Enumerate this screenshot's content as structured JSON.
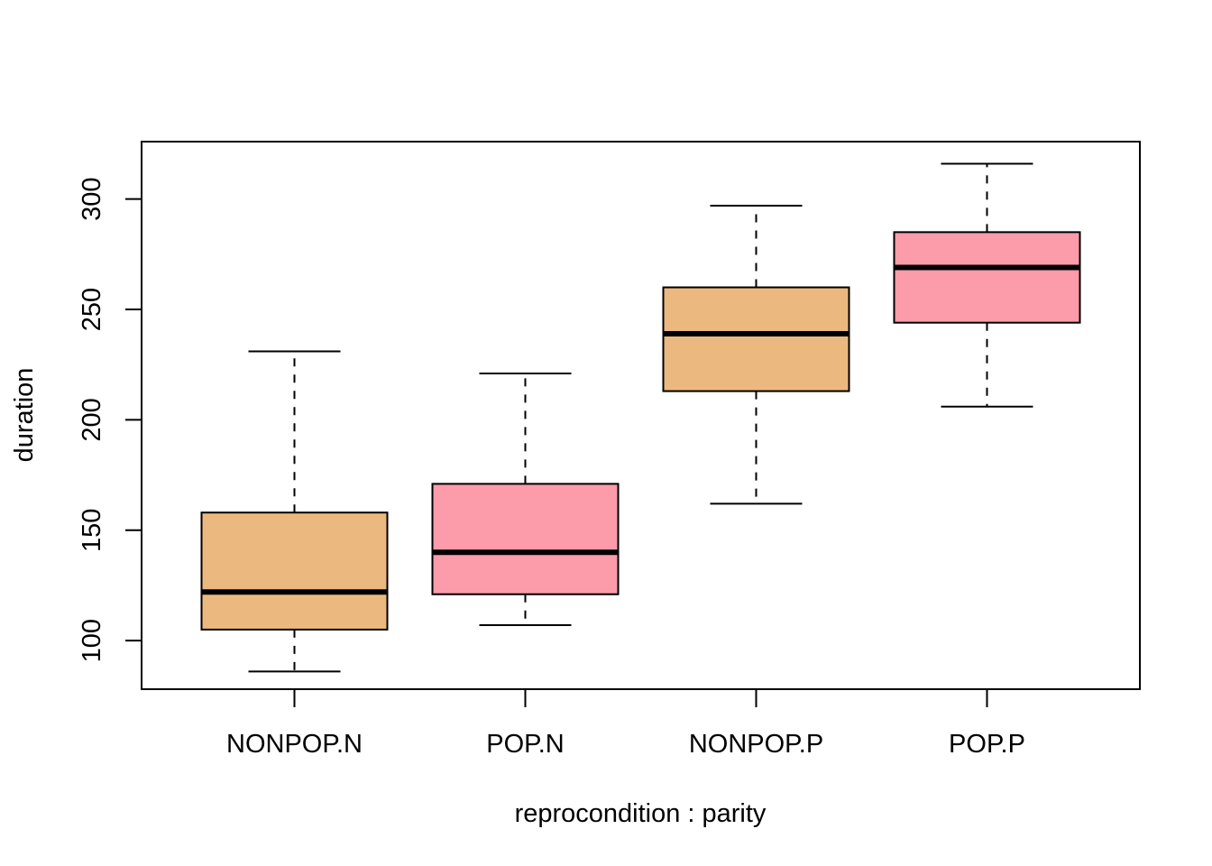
{
  "chart_data": {
    "type": "box",
    "title": "",
    "xlabel": "reprocondition : parity",
    "ylabel": "duration",
    "categories": [
      "NONPOP.N",
      "POP.N",
      "NONPOP.P",
      "POP.P"
    ],
    "boxes": [
      {
        "category": "NONPOP.N",
        "whisker_low": 86,
        "q1": 105,
        "median": 122,
        "q3": 158,
        "whisker_high": 231,
        "fill": "#EBB97F"
      },
      {
        "category": "POP.N",
        "whisker_low": 107,
        "q1": 121,
        "median": 140,
        "q3": 171,
        "whisker_high": 221,
        "fill": "#FC9BAA"
      },
      {
        "category": "NONPOP.P",
        "whisker_low": 162,
        "q1": 213,
        "median": 239,
        "q3": 260,
        "whisker_high": 297,
        "fill": "#EBB97F"
      },
      {
        "category": "POP.P",
        "whisker_low": 206,
        "q1": 244,
        "median": 269,
        "q3": 285,
        "whisker_high": 316,
        "fill": "#FC9BAA"
      }
    ],
    "ylim": [
      78,
      326
    ],
    "yticks": [
      100,
      150,
      200,
      250,
      300
    ],
    "grid": false
  }
}
